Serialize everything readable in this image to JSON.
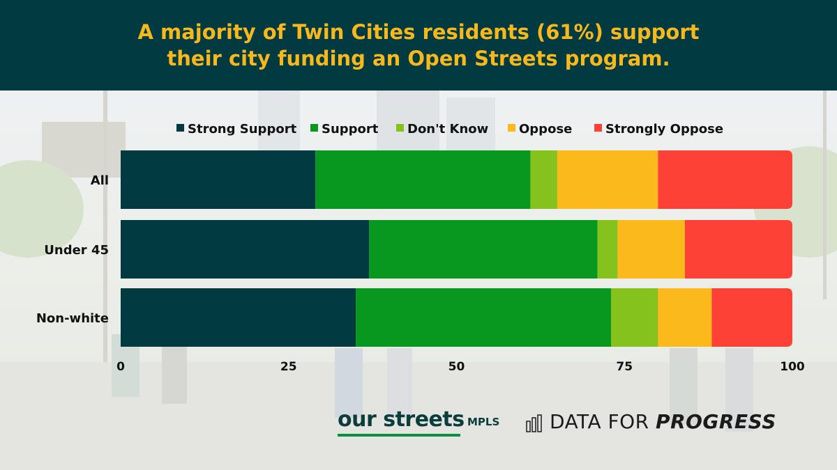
{
  "header": {
    "title_line1": "A majority of Twin Cities residents (61%) support",
    "title_line2": "their city funding an Open Streets program."
  },
  "colors": {
    "header_bg": "#023a41",
    "title": "#f6b81c",
    "Strong Support": "#023a41",
    "Support": "#08971f",
    "Don't Know": "#86c21d",
    "Oppose": "#fbb91c",
    "Strongly Oppose": "#fd4137"
  },
  "chart_data": {
    "type": "bar",
    "orientation": "horizontal",
    "stacked": true,
    "categories": [
      "All",
      "Under 45",
      "Non-white"
    ],
    "series": [
      {
        "name": "Strong Support",
        "values": [
          29,
          37,
          35
        ]
      },
      {
        "name": "Support",
        "values": [
          32,
          34,
          38
        ]
      },
      {
        "name": "Don't Know",
        "values": [
          4,
          3,
          7
        ]
      },
      {
        "name": "Oppose",
        "values": [
          15,
          10,
          8
        ]
      },
      {
        "name": "Strongly Oppose",
        "values": [
          20,
          16,
          12
        ]
      }
    ],
    "x_ticks": [
      0,
      25,
      50,
      75,
      100
    ],
    "xlim": [
      0,
      100
    ],
    "legend_position": "top",
    "grid": false
  },
  "footer": {
    "logo1_main": "our streets",
    "logo1_sub": "MPLS",
    "logo2_plain": "DATA FOR ",
    "logo2_emph": "PROGRESS"
  }
}
